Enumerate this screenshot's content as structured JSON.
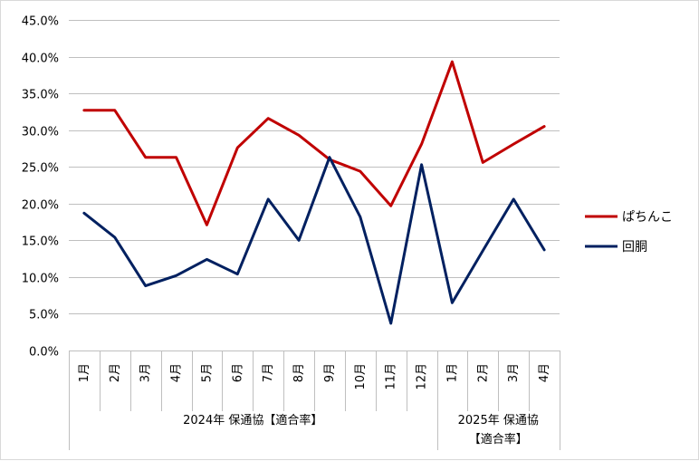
{
  "chart_data": {
    "type": "line",
    "title": "",
    "xlabel": "",
    "ylabel": "",
    "ylim": [
      0,
      45
    ],
    "y_ticks": [
      "0.0%",
      "5.0%",
      "10.0%",
      "15.0%",
      "20.0%",
      "25.0%",
      "30.0%",
      "35.0%",
      "40.0%",
      "45.0%"
    ],
    "grid": true,
    "legend_position": "right",
    "categories": [
      "1月",
      "2月",
      "3月",
      "4月",
      "5月",
      "6月",
      "7月",
      "8月",
      "9月",
      "10月",
      "11月",
      "12月",
      "1月",
      "2月",
      "3月",
      "4月"
    ],
    "groups": [
      {
        "label": "2024年 保通協【適合率】",
        "count": 12
      },
      {
        "label": "2025年 保通協【適合率】",
        "count": 4
      }
    ],
    "series": [
      {
        "name": "ぱちんこ",
        "color": "#c00000",
        "values": [
          32.7,
          32.7,
          26.3,
          26.3,
          17.1,
          27.6,
          31.6,
          29.3,
          26.0,
          24.4,
          19.7,
          28.1,
          39.3,
          25.6,
          28.1,
          30.5
        ]
      },
      {
        "name": "回胴",
        "color": "#002060",
        "values": [
          18.7,
          15.4,
          8.8,
          10.2,
          12.4,
          10.4,
          20.6,
          15.0,
          26.3,
          18.2,
          3.7,
          25.3,
          6.5,
          13.6,
          20.6,
          13.7
        ]
      }
    ]
  }
}
